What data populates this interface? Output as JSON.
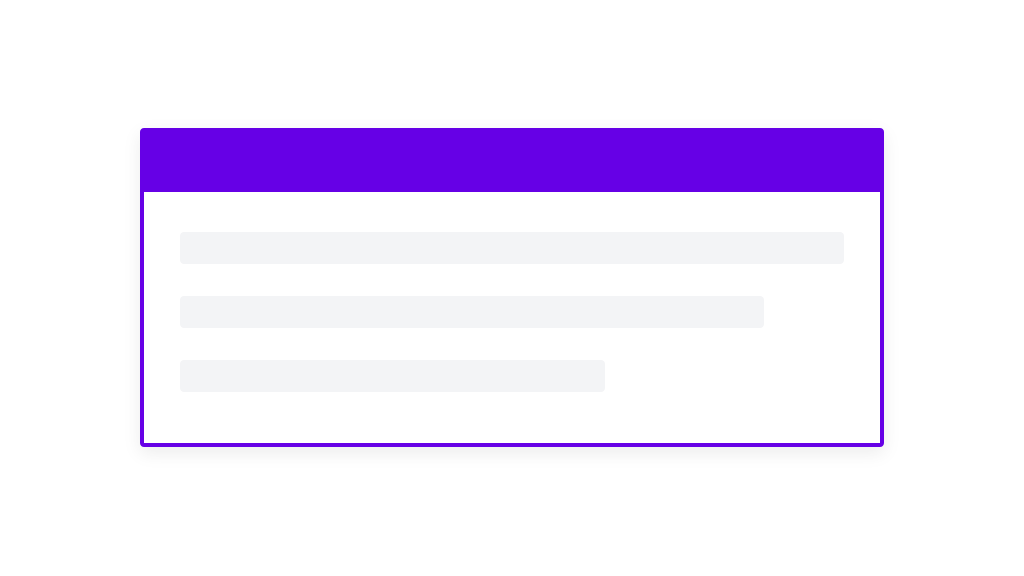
{
  "card": {
    "accent_color": "#6600e6",
    "skeleton_color": "#f3f4f6",
    "skeleton_lines": [
      {
        "fill_fraction": 1.0
      },
      {
        "fill_fraction": 0.88
      },
      {
        "fill_fraction": 0.64
      }
    ]
  }
}
